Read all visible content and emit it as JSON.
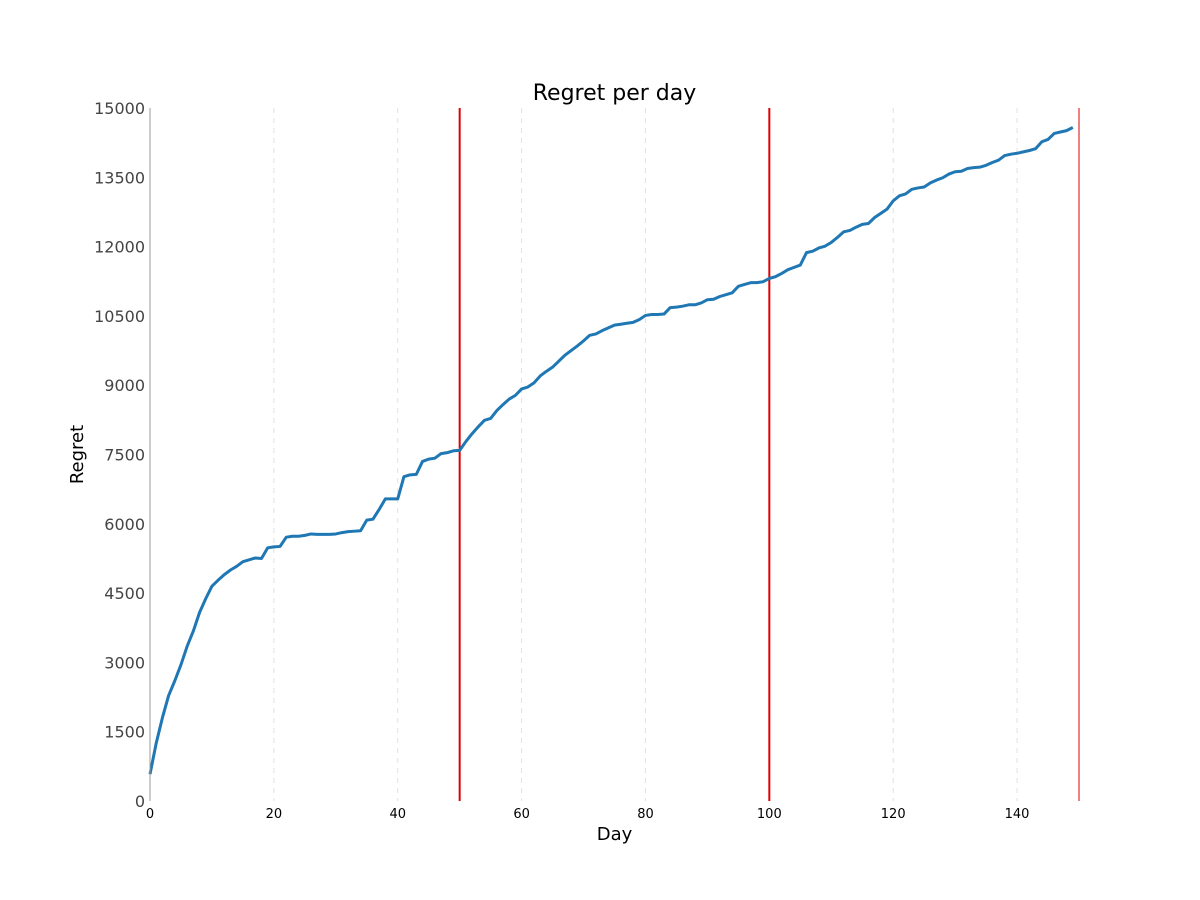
{
  "chart_data": {
    "type": "line",
    "title": "Regret per day",
    "xlabel": "Day",
    "ylabel": "Regret",
    "xlim": [
      0,
      150
    ],
    "ylim": [
      0,
      15000
    ],
    "x_ticks": [
      0,
      20,
      40,
      60,
      80,
      100,
      120,
      140
    ],
    "y_ticks": [
      0,
      1500,
      3000,
      4500,
      6000,
      7500,
      9000,
      10500,
      12000,
      13500,
      15000
    ],
    "grid": "vertical dashed at x ticks",
    "line_color": "#1f77b4",
    "vline_color": "#e00000",
    "vlines": [
      50,
      100,
      150
    ],
    "series": [
      {
        "values": [
          [
            0,
            580
          ],
          [
            1,
            1250
          ],
          [
            2,
            1800
          ],
          [
            3,
            2280
          ],
          [
            4,
            2600
          ],
          [
            5,
            2950
          ],
          [
            6,
            3350
          ],
          [
            7,
            3680
          ],
          [
            8,
            4080
          ],
          [
            9,
            4380
          ],
          [
            10,
            4650
          ],
          [
            11,
            4780
          ],
          [
            12,
            4900
          ],
          [
            13,
            5000
          ],
          [
            14,
            5080
          ],
          [
            15,
            5180
          ],
          [
            16,
            5220
          ],
          [
            17,
            5260
          ],
          [
            18,
            5250
          ],
          [
            19,
            5480
          ],
          [
            20,
            5500
          ],
          [
            21,
            5510
          ],
          [
            22,
            5710
          ],
          [
            23,
            5730
          ],
          [
            24,
            5730
          ],
          [
            25,
            5750
          ],
          [
            26,
            5780
          ],
          [
            27,
            5770
          ],
          [
            28,
            5770
          ],
          [
            29,
            5770
          ],
          [
            30,
            5780
          ],
          [
            31,
            5810
          ],
          [
            32,
            5830
          ],
          [
            33,
            5840
          ],
          [
            34,
            5850
          ],
          [
            35,
            6080
          ],
          [
            36,
            6100
          ],
          [
            37,
            6310
          ],
          [
            38,
            6540
          ],
          [
            39,
            6540
          ],
          [
            40,
            6540
          ],
          [
            41,
            7020
          ],
          [
            42,
            7060
          ],
          [
            43,
            7070
          ],
          [
            44,
            7350
          ],
          [
            45,
            7400
          ],
          [
            46,
            7420
          ],
          [
            47,
            7520
          ],
          [
            48,
            7540
          ],
          [
            49,
            7580
          ],
          [
            50,
            7590
          ],
          [
            51,
            7780
          ],
          [
            52,
            7950
          ],
          [
            53,
            8100
          ],
          [
            54,
            8240
          ],
          [
            55,
            8280
          ],
          [
            56,
            8450
          ],
          [
            57,
            8580
          ],
          [
            58,
            8700
          ],
          [
            59,
            8780
          ],
          [
            60,
            8920
          ],
          [
            61,
            8960
          ],
          [
            62,
            9050
          ],
          [
            63,
            9200
          ],
          [
            64,
            9300
          ],
          [
            65,
            9390
          ],
          [
            66,
            9520
          ],
          [
            67,
            9650
          ],
          [
            68,
            9750
          ],
          [
            69,
            9850
          ],
          [
            70,
            9960
          ],
          [
            71,
            10080
          ],
          [
            72,
            10110
          ],
          [
            73,
            10180
          ],
          [
            74,
            10240
          ],
          [
            75,
            10300
          ],
          [
            76,
            10320
          ],
          [
            77,
            10340
          ],
          [
            78,
            10360
          ],
          [
            79,
            10420
          ],
          [
            80,
            10510
          ],
          [
            81,
            10530
          ],
          [
            82,
            10530
          ],
          [
            83,
            10540
          ],
          [
            84,
            10680
          ],
          [
            85,
            10690
          ],
          [
            86,
            10710
          ],
          [
            87,
            10740
          ],
          [
            88,
            10740
          ],
          [
            89,
            10780
          ],
          [
            90,
            10850
          ],
          [
            91,
            10860
          ],
          [
            92,
            10920
          ],
          [
            93,
            10960
          ],
          [
            94,
            11000
          ],
          [
            95,
            11140
          ],
          [
            96,
            11180
          ],
          [
            97,
            11220
          ],
          [
            98,
            11220
          ],
          [
            99,
            11240
          ],
          [
            100,
            11310
          ],
          [
            101,
            11350
          ],
          [
            102,
            11420
          ],
          [
            103,
            11500
          ],
          [
            104,
            11550
          ],
          [
            105,
            11600
          ],
          [
            106,
            11870
          ],
          [
            107,
            11900
          ],
          [
            108,
            11970
          ],
          [
            109,
            12010
          ],
          [
            110,
            12090
          ],
          [
            111,
            12200
          ],
          [
            112,
            12320
          ],
          [
            113,
            12350
          ],
          [
            114,
            12420
          ],
          [
            115,
            12480
          ],
          [
            116,
            12500
          ],
          [
            117,
            12630
          ],
          [
            118,
            12720
          ],
          [
            119,
            12810
          ],
          [
            120,
            12990
          ],
          [
            121,
            13100
          ],
          [
            122,
            13140
          ],
          [
            123,
            13240
          ],
          [
            124,
            13270
          ],
          [
            125,
            13290
          ],
          [
            126,
            13380
          ],
          [
            127,
            13440
          ],
          [
            128,
            13490
          ],
          [
            129,
            13570
          ],
          [
            130,
            13620
          ],
          [
            131,
            13630
          ],
          [
            132,
            13690
          ],
          [
            133,
            13710
          ],
          [
            134,
            13720
          ],
          [
            135,
            13760
          ],
          [
            136,
            13820
          ],
          [
            137,
            13870
          ],
          [
            138,
            13970
          ],
          [
            139,
            14000
          ],
          [
            140,
            14020
          ],
          [
            141,
            14050
          ],
          [
            142,
            14080
          ],
          [
            143,
            14120
          ],
          [
            144,
            14270
          ],
          [
            145,
            14320
          ],
          [
            146,
            14450
          ],
          [
            147,
            14480
          ],
          [
            148,
            14510
          ],
          [
            149,
            14580
          ]
        ]
      }
    ]
  }
}
